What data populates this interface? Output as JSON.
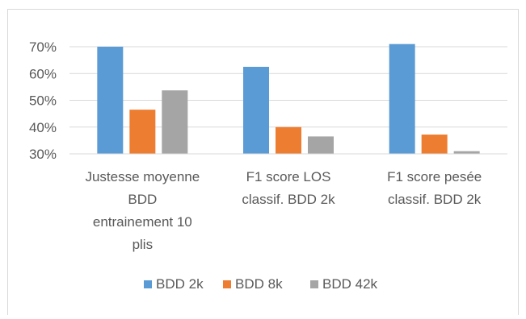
{
  "chart_data": {
    "type": "bar",
    "categories": [
      [
        "Justesse moyenne",
        "BDD",
        "entrainement 10",
        "plis"
      ],
      [
        "F1 score LOS",
        "classif. BDD 2k"
      ],
      [
        "F1 score pesée",
        "classif. BDD 2k"
      ]
    ],
    "series": [
      {
        "name": "BDD 2k",
        "color": "#5b9bd5",
        "values": [
          0.7,
          0.625,
          0.71
        ]
      },
      {
        "name": "BDD 8k",
        "color": "#ed7d31",
        "values": [
          0.465,
          0.4,
          0.372
        ]
      },
      {
        "name": "BDD 42k",
        "color": "#a5a5a5",
        "values": [
          0.537,
          0.365,
          0.31
        ]
      }
    ],
    "ylim": [
      0.3,
      0.7
    ],
    "yticks": [
      "30%",
      "40%",
      "50%",
      "60%",
      "70%"
    ],
    "grid": true,
    "legend_position": "bottom",
    "gridline_color": "#d9d9d9"
  }
}
